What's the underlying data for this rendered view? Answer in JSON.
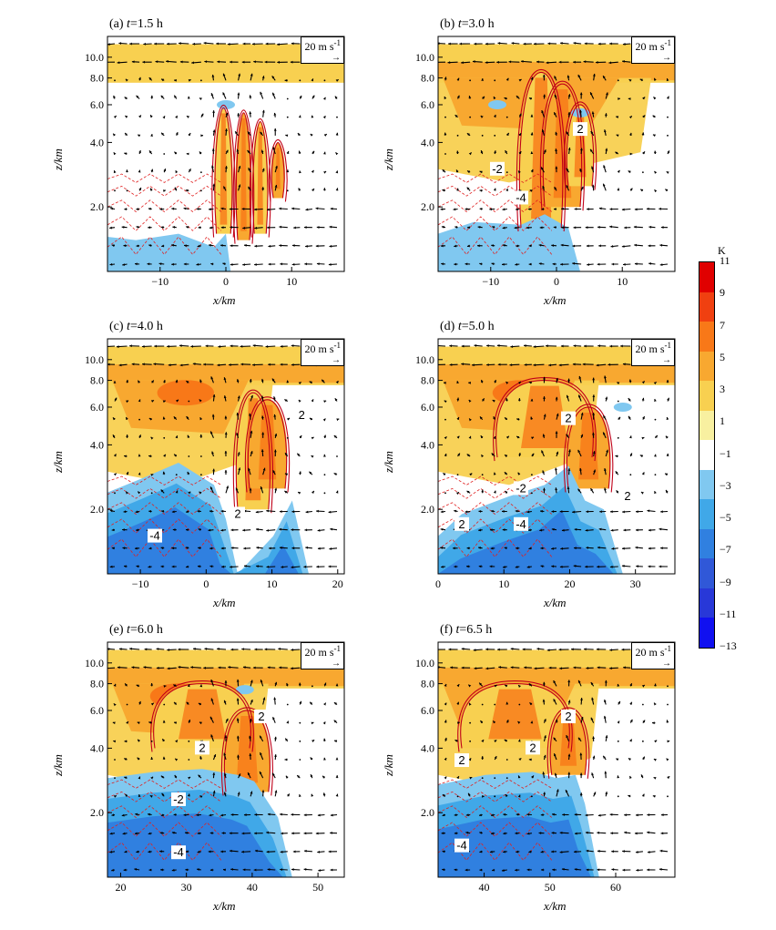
{
  "colorbar": {
    "unit": "K",
    "levels": [
      "11",
      "9",
      "7",
      "5",
      "3",
      "1",
      "−1",
      "−3",
      "−5",
      "−7",
      "−9",
      "−11",
      "−13"
    ],
    "colors": [
      "#e00000",
      "#f04010",
      "#f87818",
      "#f8a830",
      "#f8d050",
      "#f8f0a0",
      "#ffffff",
      "#80c8f0",
      "#40a8e8",
      "#3080e0",
      "#3058d8",
      "#2838d8",
      "#1010f0"
    ]
  },
  "chart_data": [
    {
      "type": "heatmap",
      "panel": "(a)",
      "title_prefix": "(a) ",
      "title_var": "t",
      "title_value": "=1.5 h",
      "xlabel": "x/km",
      "ylabel": "z/km",
      "xlim": [
        -18,
        18
      ],
      "x_ticks": [
        "−10",
        "0",
        "10"
      ],
      "y_ticks": [
        "2.0",
        "4.0",
        "6.0",
        "8.0",
        "10.0"
      ],
      "ref_vector": "20 m s",
      "ref_sup": "-1",
      "contour_labels": []
    },
    {
      "type": "heatmap",
      "panel": "(b)",
      "title_prefix": "(b) ",
      "title_var": "t",
      "title_value": "=3.0 h",
      "xlabel": "x/km",
      "ylabel": "z/km",
      "xlim": [
        -18,
        18
      ],
      "x_ticks": [
        "−10",
        "0",
        "10"
      ],
      "y_ticks": [
        "2.0",
        "4.0",
        "6.0",
        "8.0",
        "10.0"
      ],
      "ref_vector": "20 m s",
      "ref_sup": "-1",
      "contour_labels": [
        "2",
        "-2",
        "-4"
      ]
    },
    {
      "type": "heatmap",
      "panel": "(c)",
      "title_prefix": "(c) ",
      "title_var": "t",
      "title_value": "=4.0 h",
      "xlabel": "x/km",
      "ylabel": "z/km",
      "xlim": [
        -15,
        21
      ],
      "x_ticks": [
        "−10",
        "0",
        "10",
        "20"
      ],
      "y_ticks": [
        "2.0",
        "4.0",
        "6.0",
        "8.0",
        "10.0"
      ],
      "ref_vector": "20 m s",
      "ref_sup": "-1",
      "contour_labels": [
        "2",
        "2",
        "-4"
      ]
    },
    {
      "type": "heatmap",
      "panel": "(d)",
      "title_prefix": "(d) ",
      "title_var": "t",
      "title_value": "=5.0 h",
      "xlabel": "x/km",
      "ylabel": "z/km",
      "xlim": [
        0,
        36
      ],
      "x_ticks": [
        "0",
        "10",
        "20",
        "30"
      ],
      "y_ticks": [
        "2.0",
        "4.0",
        "6.0",
        "8.0",
        "10.0"
      ],
      "ref_vector": "20 m s",
      "ref_sup": "-1",
      "contour_labels": [
        "2",
        "-2",
        "2",
        "-4",
        "2"
      ]
    },
    {
      "type": "heatmap",
      "panel": "(e)",
      "title_prefix": "(e) ",
      "title_var": "t",
      "title_value": "=6.0 h",
      "xlabel": "x/km",
      "ylabel": "z/km",
      "xlim": [
        18,
        54
      ],
      "x_ticks": [
        "20",
        "30",
        "40",
        "50"
      ],
      "y_ticks": [
        "2.0",
        "4.0",
        "6.0",
        "8.0",
        "10.0"
      ],
      "ref_vector": "20 m s",
      "ref_sup": "-1",
      "contour_labels": [
        "2",
        "2",
        "-2",
        "-4"
      ]
    },
    {
      "type": "heatmap",
      "panel": "(f)",
      "title_prefix": "(f) ",
      "title_var": "t",
      "title_value": "=6.5 h",
      "xlabel": "x/km",
      "ylabel": "z/km",
      "xlim": [
        33,
        69
      ],
      "x_ticks": [
        "40",
        "50",
        "60"
      ],
      "y_ticks": [
        "2.0",
        "4.0",
        "6.0",
        "8.0",
        "10.0"
      ],
      "ref_vector": "20 m s",
      "ref_sup": "-1",
      "contour_labels": [
        "2",
        "2",
        "2",
        "-4"
      ]
    }
  ]
}
